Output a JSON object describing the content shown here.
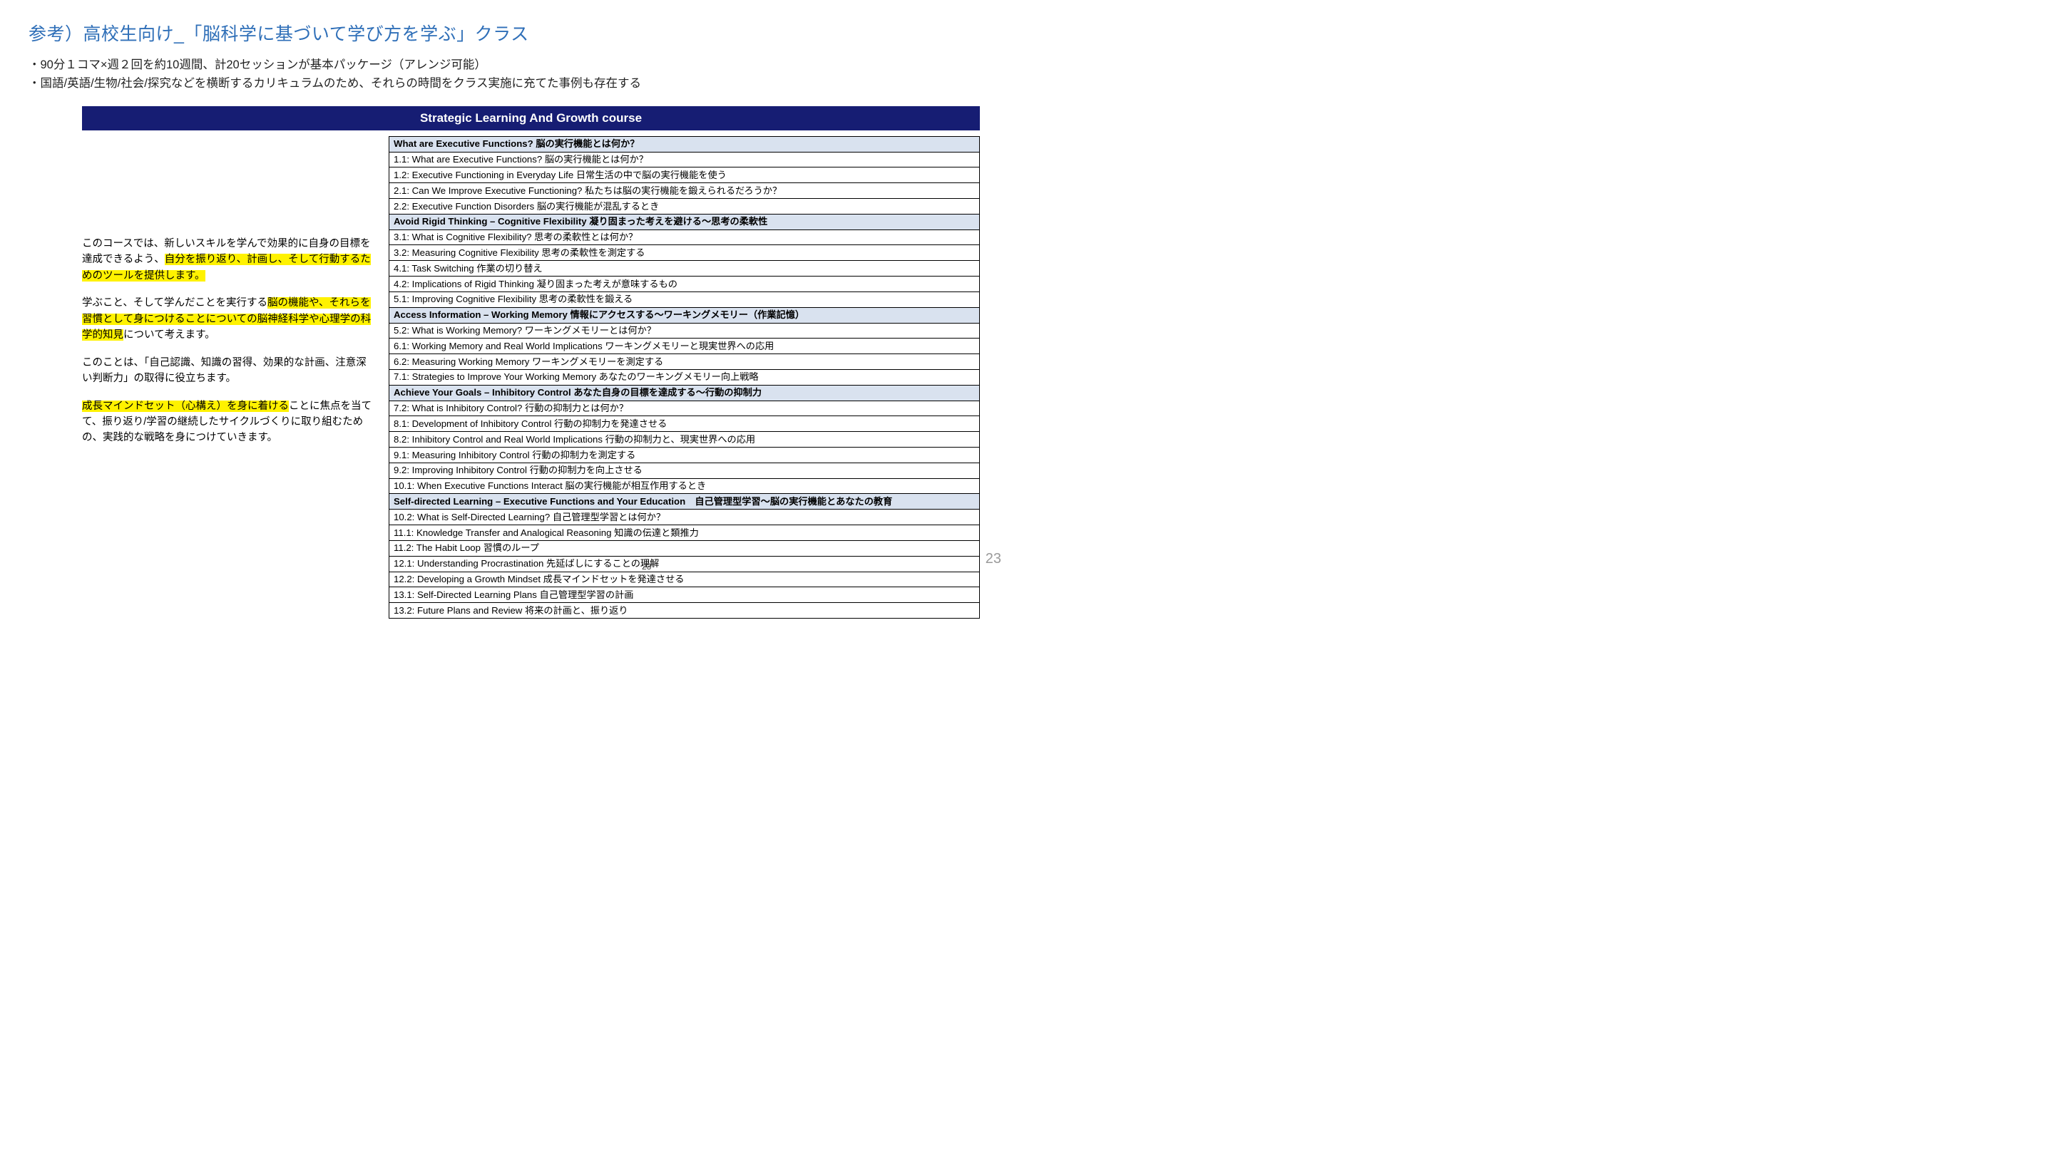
{
  "title": "参考）高校生向け_「脳科学に基づいて学び方を学ぶ」クラス",
  "bullet1": "・90分１コマ×週２回を約10週間、計20セッションが基本パッケージ（アレンジ可能）",
  "bullet2": "・国語/英語/生物/社会/探究などを横断するカリキュラムのため、それらの時間をクラス実施に充てた事例も存在する",
  "banner": "Strategic Learning And Growth course",
  "left": {
    "p1a": "このコースでは、新しいスキルを学んで効果的に自身の目標を達成できるよう、",
    "p1h": "自分を振り返り、計画し、そして行動するためのツールを提供します。",
    "p2a": "学ぶこと、そして学んだことを実行する",
    "p2h1": "脳の機能や、それらを習慣として身につけることについての脳神経科学や心理学の科学的知見",
    "p2b": "について考えます。",
    "p3": "このことは、「自己認識、知識の習得、効果的な計画、注意深い判断力」の取得に役立ちます。",
    "p4h": "成長マインドセット（心構え）を身に着ける",
    "p4a": "ことに焦点を当てて、振り返り/学習の継続したサイクルづくりに取り組むための、実践的な戦略を身につけていきます。"
  },
  "rows": [
    {
      "head": true,
      "text": "What are Executive Functions? 脳の実行機能とは何か？"
    },
    {
      "head": false,
      "text": "1.1: What are Executive Functions? 脳の実行機能とは何か？"
    },
    {
      "head": false,
      "text": "1.2: Executive Functioning in Everyday Life 日常生活の中で脳の実行機能を使う"
    },
    {
      "head": false,
      "text": "2.1: Can We Improve Executive Functioning? 私たちは脳の実行機能を鍛えられるだろうか？"
    },
    {
      "head": false,
      "text": "2.2: Executive Function Disorders 脳の実行機能が混乱するとき"
    },
    {
      "head": true,
      "text": "Avoid Rigid Thinking – Cognitive Flexibility 凝り固まった考えを避ける〜思考の柔軟性"
    },
    {
      "head": false,
      "text": "3.1: What is Cognitive Flexibility? 思考の柔軟性とは何か？"
    },
    {
      "head": false,
      "text": "3.2: Measuring Cognitive Flexibility 思考の柔軟性を測定する"
    },
    {
      "head": false,
      "text": "4.1: Task Switching 作業の切り替え"
    },
    {
      "head": false,
      "text": "4.2: Implications of Rigid Thinking 凝り固まった考えが意味するもの"
    },
    {
      "head": false,
      "text": "5.1: Improving Cognitive Flexibility 思考の柔軟性を鍛える"
    },
    {
      "head": true,
      "text": "Access Information – Working Memory 情報にアクセスする〜ワーキングメモリー（作業記憶）"
    },
    {
      "head": false,
      "text": "5.2: What is Working Memory? ワーキングメモリーとは何か？"
    },
    {
      "head": false,
      "text": "6.1: Working Memory and Real World Implications ワーキングメモリーと現実世界への応用"
    },
    {
      "head": false,
      "text": "6.2: Measuring Working Memory ワーキングメモリーを測定する"
    },
    {
      "head": false,
      "text": "7.1: Strategies to Improve Your Working Memory あなたのワーキングメモリー向上戦略"
    },
    {
      "head": true,
      "text": "Achieve Your Goals – Inhibitory Control あなた自身の目標を達成する〜行動の抑制力"
    },
    {
      "head": false,
      "text": "7.2: What is Inhibitory Control? 行動の抑制力とは何か？"
    },
    {
      "head": false,
      "text": "8.1: Development of Inhibitory Control 行動の抑制力を発達させる"
    },
    {
      "head": false,
      "text": "8.2: Inhibitory Control and Real World Implications 行動の抑制力と、現実世界への応用"
    },
    {
      "head": false,
      "text": "9.1: Measuring Inhibitory Control 行動の抑制力を測定する"
    },
    {
      "head": false,
      "text": "9.2: Improving Inhibitory Control 行動の抑制力を向上させる"
    },
    {
      "head": false,
      "text": "10.1: When Executive Functions Interact 脳の実行機能が相互作用するとき"
    },
    {
      "head": true,
      "text": "Self-directed Learning – Executive Functions and Your Education　自己管理型学習〜脳の実行機能とあなたの教育"
    },
    {
      "head": false,
      "text": "10.2: What is Self-Directed Learning? 自己管理型学習とは何か？"
    },
    {
      "head": false,
      "text": "11.1: Knowledge Transfer and Analogical Reasoning 知識の伝達と類推力"
    },
    {
      "head": false,
      "text": "11.2: The Habit Loop 習慣のループ"
    },
    {
      "head": false,
      "text": "12.1: Understanding Procrastination 先延ばしにすることの理解"
    },
    {
      "head": false,
      "text": "12.2: Developing a Growth Mindset 成長マインドセットを発達させる"
    },
    {
      "head": false,
      "text": "13.1: Self-Directed Learning Plans 自己管理型学習の計画"
    },
    {
      "head": false,
      "text": "13.2: Future Plans and Review 将来の計画と、振り返り"
    }
  ],
  "pageSmall": "23",
  "pageBig": "23"
}
